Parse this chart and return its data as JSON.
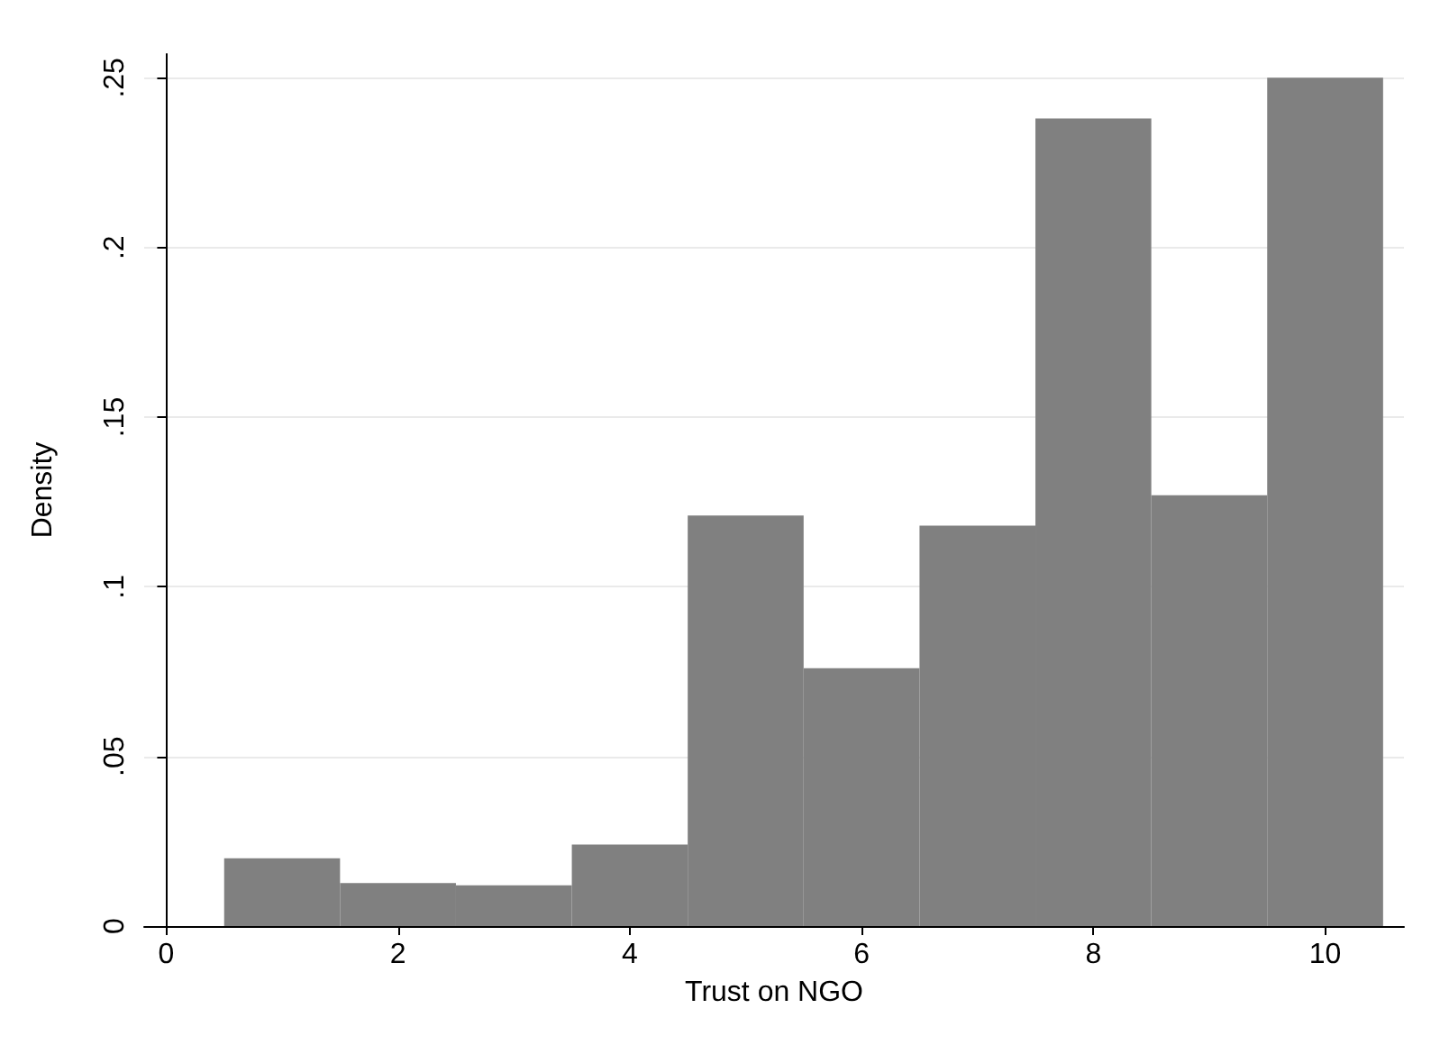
{
  "chart_data": {
    "type": "histogram",
    "xlabel": "Trust on NGO",
    "ylabel": "Density",
    "bins": [
      0.5,
      1.5,
      2.5,
      3.5,
      4.5,
      5.5,
      6.5,
      7.5,
      8.5,
      9.5,
      10.5
    ],
    "values": [
      0.02,
      0.0127,
      0.012,
      0.024,
      0.121,
      0.076,
      0.118,
      0.238,
      0.127,
      0.25
    ],
    "color": "#808080",
    "xlim": [
      -0.19,
      10.68
    ],
    "xticks": [
      0,
      2,
      4,
      6,
      8,
      10
    ],
    "ylim": [
      0,
      0.257
    ],
    "yticks": [
      {
        "value": 0,
        "label": "0"
      },
      {
        "value": 0.05,
        "label": ".05"
      },
      {
        "value": 0.1,
        "label": ".1"
      },
      {
        "value": 0.15,
        "label": ".15"
      },
      {
        "value": 0.2,
        "label": ".2"
      },
      {
        "value": 0.25,
        "label": ".25"
      }
    ],
    "grid": "y"
  }
}
